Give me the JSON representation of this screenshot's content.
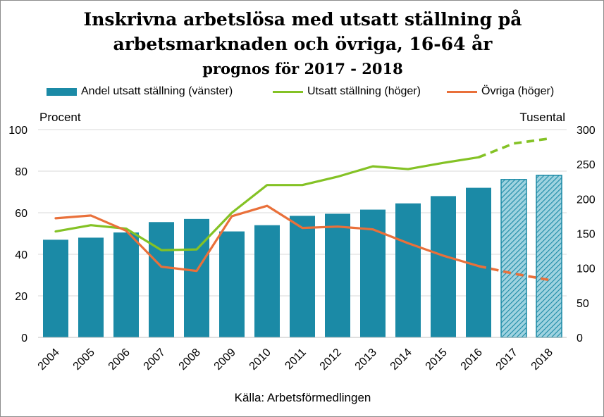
{
  "title_line1": "Inskrivna arbetslösa med utsatt ställning på",
  "title_line2": "arbetsmarknaden och övriga, 16-64 år",
  "subtitle": "prognos för 2017 - 2018",
  "left_unit": "Procent",
  "right_unit": "Tusental",
  "source": "Källa: Arbetsförmedlingen",
  "colors": {
    "bar": "#1b8aa6",
    "utsatt": "#84c225",
    "ovriga": "#e9703a",
    "grid": "#d9d9d9"
  },
  "legend": [
    {
      "label": "Andel utsatt ställning (vänster)",
      "color": "#1b8aa6",
      "kind": "bar"
    },
    {
      "label": "Utsatt ställning (höger)",
      "color": "#84c225",
      "kind": "line"
    },
    {
      "label": "Övriga (höger)",
      "color": "#e9703a",
      "kind": "line"
    }
  ],
  "chart_data": {
    "type": "bar",
    "categories": [
      "2004",
      "2005",
      "2006",
      "2007",
      "2008",
      "2009",
      "2010",
      "2011",
      "2012",
      "2013",
      "2014",
      "2015",
      "2016",
      "2017",
      "2018"
    ],
    "forecast_categories": [
      "2017",
      "2018"
    ],
    "series": [
      {
        "name": "Andel utsatt ställning (vänster)",
        "type": "bar",
        "axis": "left",
        "values": [
          47,
          48,
          50.5,
          55.5,
          57,
          51,
          54,
          58.5,
          59.5,
          61.5,
          64.5,
          68,
          72,
          76,
          78
        ]
      },
      {
        "name": "Utsatt ställning (höger)",
        "type": "line",
        "axis": "right",
        "values": [
          153,
          162,
          157,
          126,
          127,
          180,
          220,
          220,
          232,
          247,
          243,
          252,
          260,
          280,
          287
        ]
      },
      {
        "name": "Övriga (höger)",
        "type": "line",
        "axis": "right",
        "values": [
          172,
          176,
          154,
          102,
          96,
          175,
          190,
          158,
          160,
          156,
          136,
          118,
          103,
          92,
          83
        ]
      }
    ],
    "left_axis": {
      "min": 0,
      "max": 100,
      "ticks": [
        0,
        20,
        40,
        60,
        80,
        100
      ]
    },
    "right_axis": {
      "min": 0,
      "max": 300,
      "ticks": [
        0,
        50,
        100,
        150,
        200,
        250,
        300
      ]
    },
    "grid": true,
    "legend_position": "top"
  }
}
